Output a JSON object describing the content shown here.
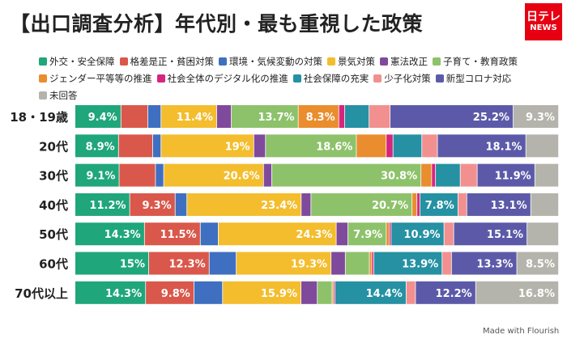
{
  "header": {
    "title": "【出口調査分析】年代別・最も重視した政策",
    "logo_line1": "日テレ",
    "logo_line2": "NEWS"
  },
  "footer": {
    "credit": "Made with Flourish"
  },
  "chart_data": {
    "type": "bar",
    "orientation": "horizontal",
    "stacked": "100%",
    "title": "【出口調査分析】年代別・最も重視した政策",
    "legend_position": "top",
    "xlim": [
      0,
      100
    ],
    "categories": [
      "18・19歳",
      "20代",
      "30代",
      "40代",
      "50代",
      "60代",
      "70代以上"
    ],
    "series": [
      {
        "name": "外交・安全保障",
        "color": "#1fa67a",
        "values": [
          9.4,
          8.9,
          9.1,
          11.2,
          14.3,
          15.0,
          14.3
        ],
        "labels": [
          true,
          true,
          true,
          true,
          true,
          true,
          true
        ]
      },
      {
        "name": "格差是正・貧困対策",
        "color": "#d9584b",
        "values": [
          5.5,
          7.0,
          7.5,
          9.3,
          11.5,
          12.3,
          9.8
        ],
        "labels": [
          false,
          false,
          false,
          true,
          true,
          true,
          true
        ]
      },
      {
        "name": "環境・気候変動の対策",
        "color": "#3f6fc0",
        "values": [
          2.7,
          1.7,
          1.7,
          2.4,
          3.7,
          5.5,
          5.8
        ],
        "labels": [
          false,
          false,
          false,
          false,
          false,
          false,
          false
        ]
      },
      {
        "name": "景気対策",
        "color": "#f3bd2e",
        "values": [
          11.4,
          19.0,
          20.6,
          23.4,
          24.3,
          19.3,
          15.9
        ],
        "labels": [
          true,
          true,
          true,
          true,
          true,
          true,
          true
        ]
      },
      {
        "name": "憲法改正",
        "color": "#7f4a9c",
        "values": [
          3.0,
          2.4,
          1.7,
          2.0,
          2.4,
          2.9,
          3.3
        ],
        "labels": [
          false,
          false,
          false,
          false,
          false,
          false,
          false
        ]
      },
      {
        "name": "子育て・教育政策",
        "color": "#8dc26b",
        "values": [
          13.7,
          18.6,
          30.8,
          20.7,
          7.9,
          4.9,
          3.0
        ],
        "labels": [
          true,
          true,
          true,
          true,
          true,
          false,
          false
        ]
      },
      {
        "name": "ジェンダー平等等の推進",
        "color": "#ea8d2e",
        "values": [
          8.3,
          6.1,
          2.2,
          1.0,
          0.6,
          0.5,
          0.3
        ],
        "labels": [
          true,
          false,
          false,
          false,
          false,
          false,
          false
        ]
      },
      {
        "name": "社会全体のデジタル化の推進",
        "color": "#d6257e",
        "values": [
          1.2,
          1.4,
          0.8,
          0.6,
          0.4,
          0.4,
          0.3
        ],
        "labels": [
          false,
          false,
          false,
          false,
          false,
          false,
          false
        ]
      },
      {
        "name": "社会保障の充実",
        "color": "#2591a3",
        "values": [
          5.0,
          5.9,
          5.1,
          7.8,
          10.9,
          13.9,
          14.4
        ],
        "labels": [
          false,
          false,
          false,
          true,
          true,
          true,
          true
        ]
      },
      {
        "name": "少子化対策",
        "color": "#f29090",
        "values": [
          4.3,
          3.2,
          3.5,
          1.8,
          2.0,
          1.9,
          1.9
        ],
        "labels": [
          false,
          false,
          false,
          false,
          false,
          false,
          false
        ]
      },
      {
        "name": "新型コロナ対応",
        "color": "#5c5aa8",
        "values": [
          25.2,
          18.1,
          11.9,
          13.1,
          15.1,
          13.3,
          12.2
        ],
        "labels": [
          true,
          true,
          true,
          true,
          true,
          true,
          true
        ]
      },
      {
        "name": "未回答",
        "color": "#b4b4ac",
        "values": [
          9.3,
          6.7,
          4.9,
          5.7,
          6.5,
          8.5,
          16.8
        ],
        "labels": [
          true,
          false,
          false,
          false,
          false,
          true,
          true
        ]
      }
    ]
  }
}
